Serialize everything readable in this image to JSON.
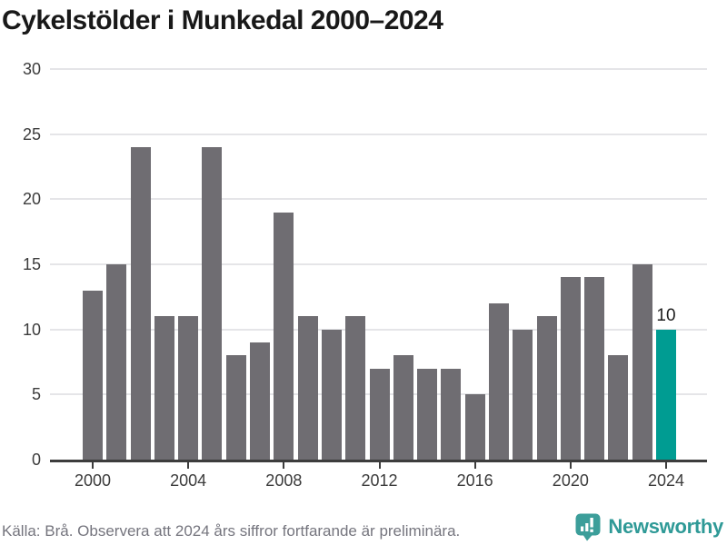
{
  "title": "Cykelstölder i Munkedal 2000–2024",
  "chart_data": {
    "type": "bar",
    "categories": [
      2000,
      2001,
      2002,
      2003,
      2004,
      2005,
      2006,
      2007,
      2008,
      2009,
      2010,
      2011,
      2012,
      2013,
      2014,
      2015,
      2016,
      2017,
      2018,
      2019,
      2020,
      2021,
      2022,
      2023,
      2024
    ],
    "values": [
      13,
      15,
      24,
      11,
      11,
      24,
      8,
      9,
      19,
      11,
      10,
      11,
      7,
      8,
      7,
      7,
      5,
      12,
      10,
      11,
      14,
      14,
      8,
      15,
      10
    ],
    "title": "Cykelstölder i Munkedal 2000–2024",
    "xlabel": "",
    "ylabel": "",
    "ylim": [
      0,
      30
    ],
    "yticks": [
      0,
      5,
      10,
      15,
      20,
      25,
      30
    ],
    "xticks": [
      2000,
      2004,
      2008,
      2012,
      2016,
      2020,
      2024
    ],
    "grid": true,
    "legend": "none",
    "bar_color": "#6f6d72",
    "highlight_index": 24,
    "highlight_color": "#009c92",
    "highlight_label": "10"
  },
  "footer": {
    "source_note": "Källa: Brå. Observera att 2024 års siffror fortfarande är preliminära.",
    "brand": "Newsworthy"
  },
  "colors": {
    "title_text": "#191919",
    "axis_text": "#3c3c3c",
    "axis_line": "#3d3d3d",
    "gridline": "#e5e5e8",
    "footer_text": "#75757e",
    "brand_teal": "#2f9a97"
  }
}
